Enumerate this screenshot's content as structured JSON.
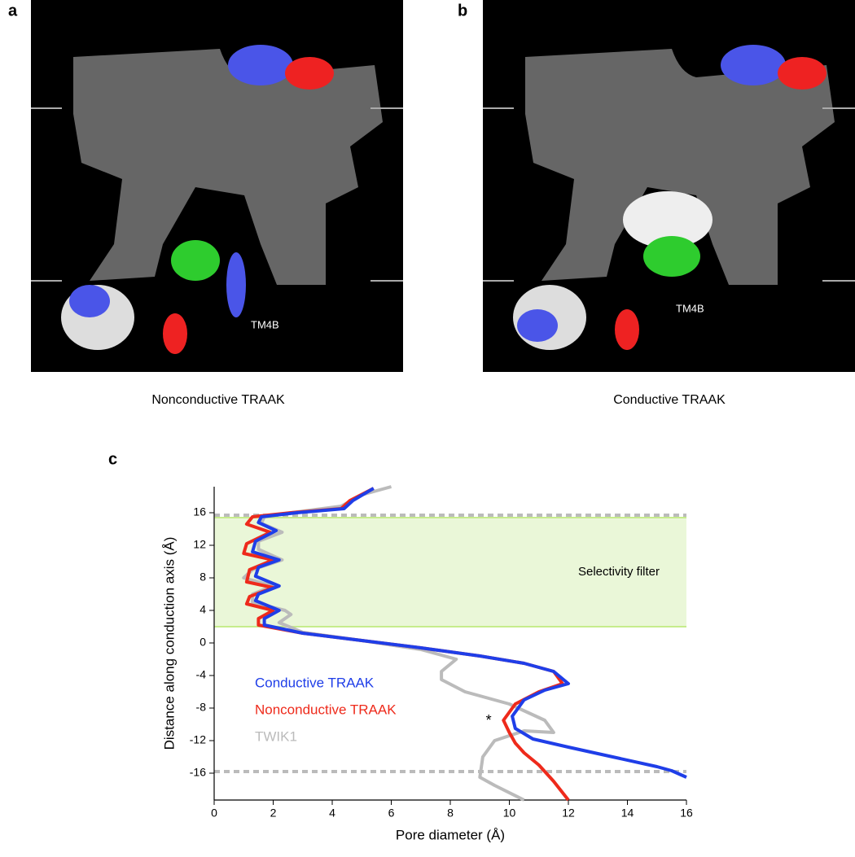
{
  "panels": [
    {
      "label": "a",
      "annotation": "TM4B",
      "caption": "Nonconductive TRAAK"
    },
    {
      "label": "b",
      "annotation": "TM4B",
      "caption": "Conductive TRAAK"
    }
  ],
  "chart_data": {
    "type": "line",
    "label": "c",
    "x_label": "Pore diameter (Å)",
    "y_label": "Distance along conduction axis (Å)",
    "xlim": [
      0,
      16
    ],
    "xticks": [
      0,
      2,
      4,
      6,
      8,
      10,
      12,
      14,
      16
    ],
    "ylim": [
      -19.3,
      19.2
    ],
    "yticks": [
      -16,
      -12,
      -8,
      -4,
      0,
      4,
      8,
      12,
      16
    ],
    "band": {
      "label": "Selectivity filter",
      "y_range": [
        2,
        15.4
      ],
      "color": "#eaf7d8",
      "edge_color": "#c6ec8c"
    },
    "reference_lines": [
      15.7,
      -15.8
    ],
    "annotation": {
      "text": "*",
      "x": 9.3,
      "y": -9.6
    },
    "series": [
      {
        "name": "TWIK1",
        "color": "#bbbbbb",
        "x": [
          6,
          5,
          4.3,
          2.6,
          1.7,
          1.6,
          2.3,
          1.5,
          1.5,
          2.3,
          1.3,
          1.0,
          2.0,
          1.3,
          1.3,
          2.4,
          2.6,
          2.2,
          3,
          5,
          7,
          8.2,
          7.7,
          7.7,
          8.5,
          10,
          11.2,
          11.5,
          10.5,
          9.5,
          9.1,
          9.0,
          9.5,
          10.5
        ],
        "values": [
          19.2,
          18.2,
          16.8,
          16,
          15.5,
          14.7,
          13.6,
          12.5,
          11.5,
          10.2,
          9,
          8,
          7,
          6,
          5,
          4,
          3.5,
          2.5,
          1.3,
          0.3,
          -0.8,
          -2,
          -3.5,
          -4.5,
          -6,
          -7.5,
          -9.5,
          -11,
          -10.8,
          -12,
          -14,
          -16.5,
          -17.5,
          -19.3
        ]
      },
      {
        "name": "Nonconductive TRAAK",
        "color": "#ee2a1b",
        "x": [
          5.4,
          4.6,
          4.3,
          2.6,
          1.3,
          1.1,
          1.9,
          1.1,
          1.0,
          2.0,
          1.2,
          1.1,
          2.0,
          1.2,
          1.1,
          2.0,
          1.5,
          1.5,
          3,
          5,
          7,
          9,
          10.5,
          11.5,
          11.8,
          11,
          10.2,
          9.8,
          10,
          10.2,
          10.5,
          11,
          11.5,
          12
        ],
        "values": [
          19,
          17.5,
          16.5,
          16,
          15.5,
          14.6,
          13.6,
          12.2,
          11,
          10.2,
          9,
          7.5,
          6.8,
          5.7,
          4.8,
          4,
          3,
          2.2,
          1.2,
          0.3,
          -0.6,
          -1.6,
          -2.5,
          -3.5,
          -5,
          -6,
          -7.5,
          -9.5,
          -11,
          -12.3,
          -13.5,
          -15,
          -17,
          -19.3
        ]
      },
      {
        "name": "Conductive TRAAK",
        "color": "#1f3ee8",
        "x": [
          5.4,
          4.7,
          4.4,
          2.8,
          1.6,
          1.5,
          2.1,
          1.4,
          1.3,
          2.2,
          1.5,
          1.4,
          2.2,
          1.5,
          1.4,
          2.2,
          1.7,
          1.7,
          3,
          5,
          7,
          9,
          10.5,
          11.5,
          12,
          11.2,
          10.5,
          10.1,
          10.2,
          10.8,
          12,
          13.5,
          15,
          15.5,
          16
        ],
        "values": [
          19,
          17.5,
          16.5,
          16,
          15.5,
          14.8,
          13.8,
          12.5,
          11.2,
          10.2,
          9.3,
          8.2,
          7,
          6,
          5.2,
          4,
          3,
          2.2,
          1.2,
          0.3,
          -0.6,
          -1.6,
          -2.5,
          -3.5,
          -5,
          -5.8,
          -7,
          -9,
          -10.5,
          -11.8,
          -12.8,
          -14,
          -15.2,
          -15.7,
          -16.5
        ]
      }
    ],
    "legend_order": [
      2,
      1,
      0
    ]
  }
}
